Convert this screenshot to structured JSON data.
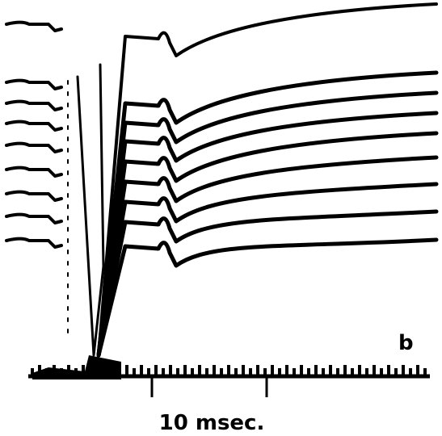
{
  "panel_label": "b",
  "scale_bar_label": "10 msec."
}
